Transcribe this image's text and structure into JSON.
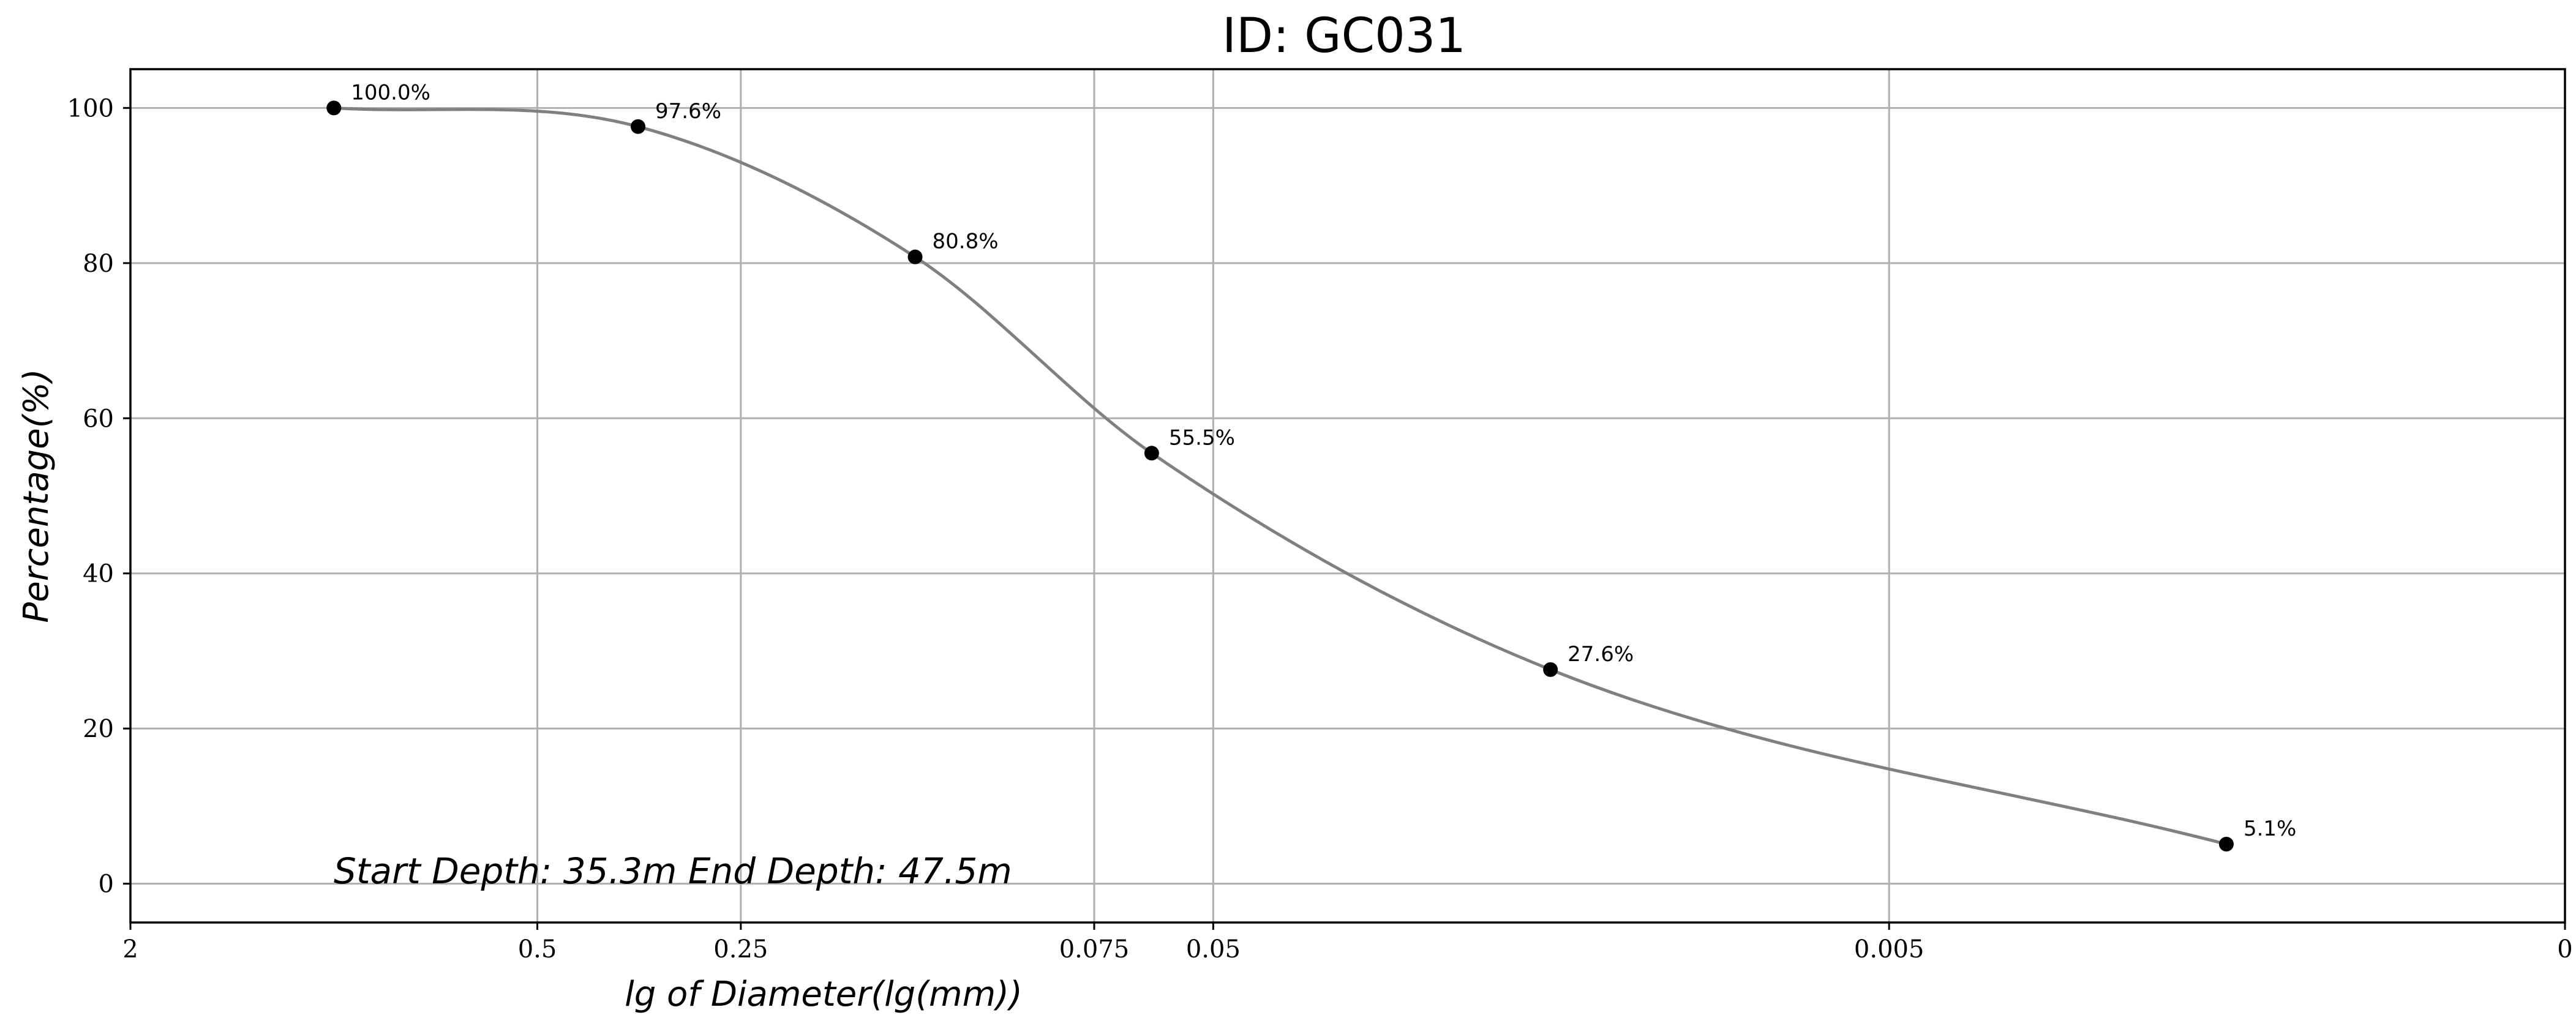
{
  "chart_data": {
    "type": "line",
    "title": "ID: GC031",
    "xlabel": "lg of Diameter(lg(mm))",
    "ylabel": "Percentage(%)",
    "x_axis": {
      "tick_labels": [
        "2",
        "0.5",
        "0.25",
        "0.075",
        "0.05",
        "0.005",
        "0"
      ],
      "tick_lg_positions": [
        0.30103,
        -0.30103,
        -0.60206,
        -1.12494,
        -1.30103,
        -2.30103,
        -3.30103
      ],
      "range_lg": [
        0.30103,
        -3.30103
      ],
      "scale": "log (reversed)"
    },
    "y_axis": {
      "ticks": [
        0,
        20,
        40,
        60,
        80,
        100
      ],
      "ylim": [
        -5,
        105
      ]
    },
    "grid": true,
    "series": [
      {
        "points": [
          {
            "lg_d": 0.0,
            "percent": 100.0,
            "label": "100.0%"
          },
          {
            "lg_d": -0.45,
            "percent": 97.6,
            "label": "97.6%"
          },
          {
            "lg_d": -0.86,
            "percent": 80.8,
            "label": "80.8%"
          },
          {
            "lg_d": -1.21,
            "percent": 55.5,
            "label": "55.5%"
          },
          {
            "lg_d": -1.8,
            "percent": 27.6,
            "label": "27.6%"
          },
          {
            "lg_d": -2.8,
            "percent": 5.1,
            "label": "5.1%"
          }
        ],
        "line_color": "#808080",
        "marker_color": "#000000"
      }
    ],
    "annotation": "Start Depth: 35.3m End Depth: 47.5m"
  }
}
